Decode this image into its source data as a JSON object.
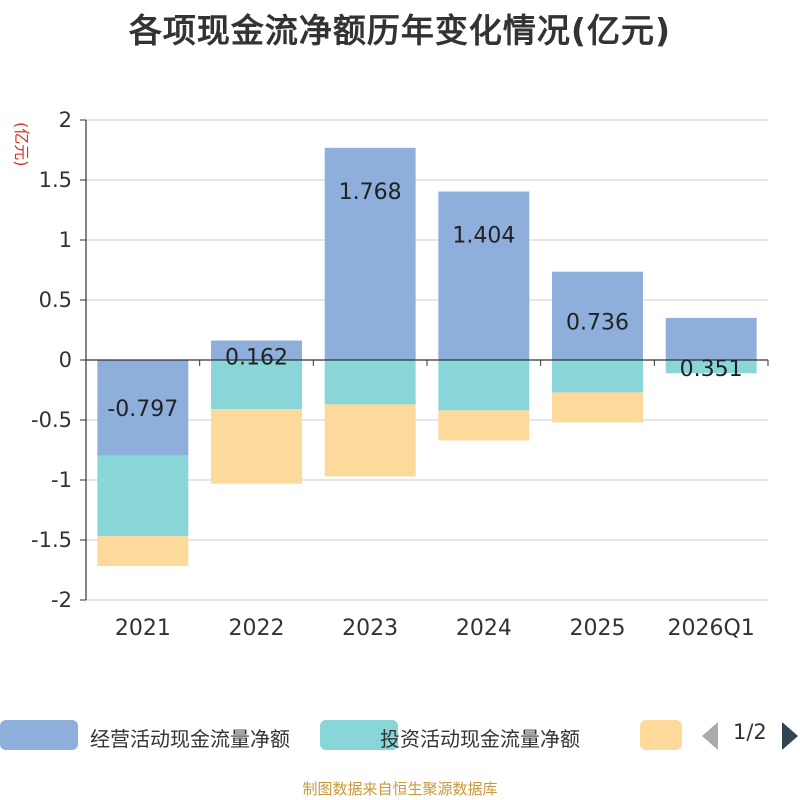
{
  "chart_data": {
    "type": "bar",
    "stacked": true,
    "title": "各项现金流净额历年变化情况(亿元)",
    "ylabel": "(亿元)",
    "categories": [
      "2021",
      "2022",
      "2023",
      "2024",
      "2025",
      "2026Q1"
    ],
    "ylim": [
      -2,
      2
    ],
    "yticks": [
      2,
      1.5,
      1,
      0.5,
      0,
      -0.5,
      -1,
      -1.5,
      -2
    ],
    "ytick_labels": [
      "2",
      "1.5",
      "1",
      "0.5",
      "0",
      "-0.5",
      "-1",
      "-1.5",
      "-2"
    ],
    "grid": true,
    "series": [
      {
        "name": "经营活动现金流量净额",
        "color": "#8eaedb",
        "values": [
          -0.797,
          0.162,
          1.768,
          1.404,
          0.736,
          0.351
        ],
        "labels": [
          "-0.797",
          "0.162",
          "1.768",
          "1.404",
          "0.736",
          "0.351"
        ]
      },
      {
        "name": "投资活动现金流量净额",
        "color": "#88d6d8",
        "values": [
          -0.67,
          -0.41,
          -0.37,
          -0.42,
          -0.27,
          -0.11
        ]
      },
      {
        "name": "",
        "color": "#fdd99c",
        "values": [
          -0.25,
          -0.62,
          -0.6,
          -0.25,
          -0.25,
          0.0
        ]
      }
    ],
    "legend": {
      "position": "bottom",
      "page": "1/2"
    }
  },
  "source": "制图数据来自恒生聚源数据库"
}
